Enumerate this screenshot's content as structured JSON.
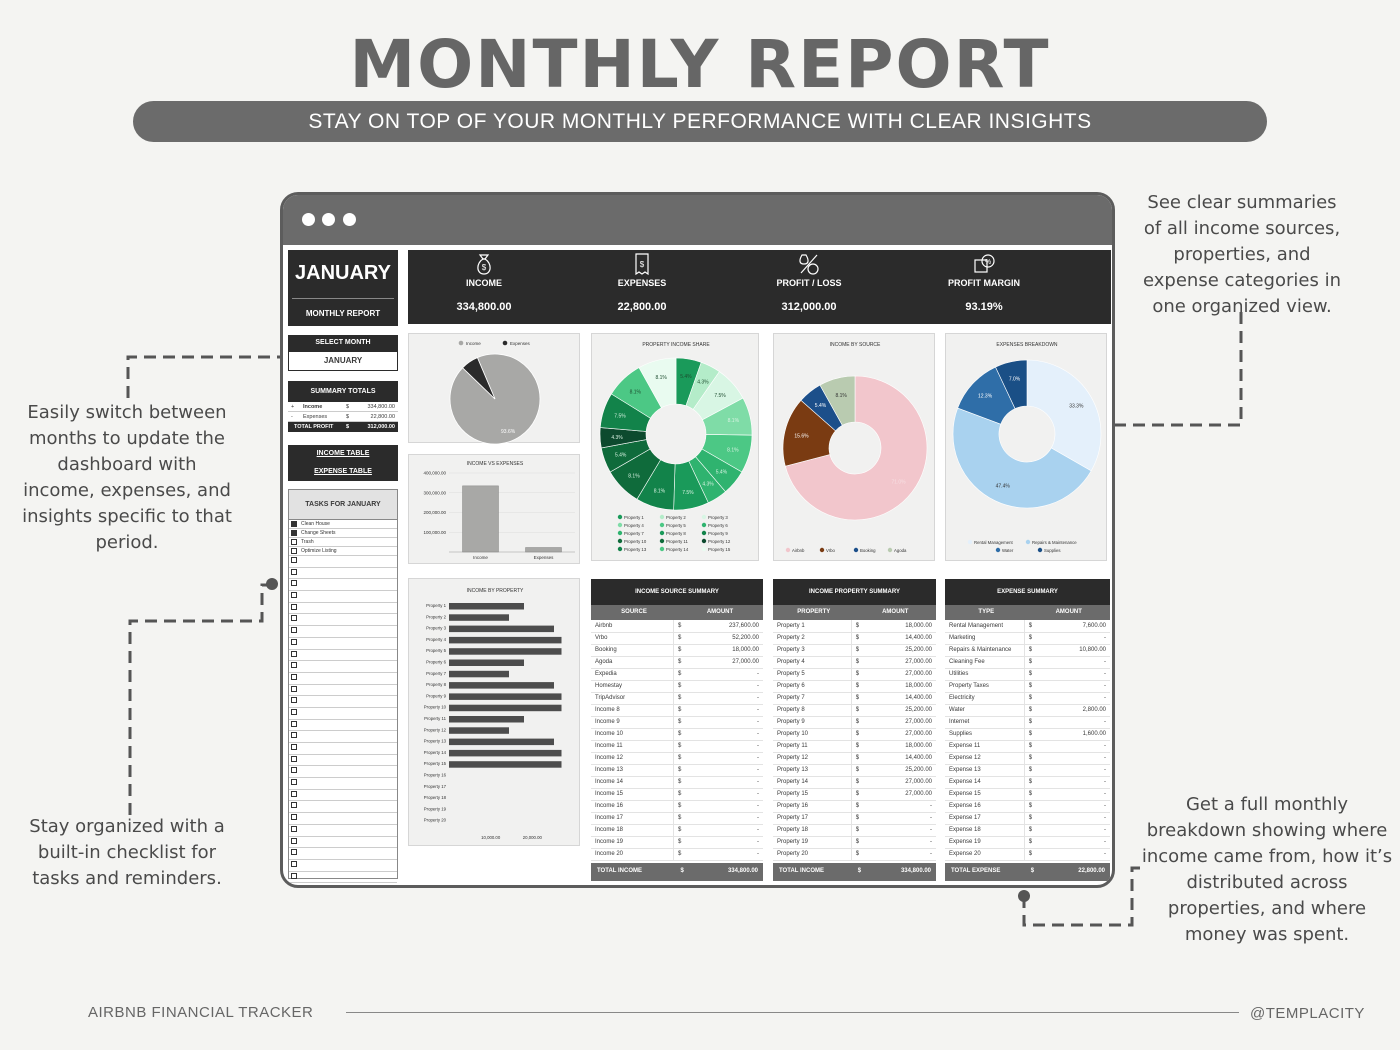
{
  "header": {
    "title": "MONTHLY REPORT",
    "subtitle": "STAY ON TOP OF YOUR MONTHLY PERFORMANCE WITH CLEAR INSIGHTS"
  },
  "notes": {
    "left_top": "Easily switch between months to update the dashboard with income, expenses, and insights specific to that period.",
    "left_bottom": "Stay organized with a built-in checklist for tasks and reminders.",
    "right_top": "See clear summaries of all income sources, properties, and expense categories in one organized view.",
    "right_bottom": "Get a full monthly breakdown showing where income came from, how it’s distributed across properties, and where money was spent."
  },
  "footer": {
    "left": "AIRBNB FINANCIAL TRACKER",
    "right": "@TEMPLACITY"
  },
  "dashboard": {
    "month_title": "JANUARY",
    "report_label": "MONTHLY REPORT",
    "select_month_label": "SELECT MONTH",
    "selected_month": "JANUARY",
    "summary_totals": {
      "title": "SUMMARY TOTALS",
      "rows": [
        {
          "sign": "+",
          "label": "Income",
          "cur": "$",
          "value": "334,800.00"
        },
        {
          "sign": "-",
          "label": "Expenses",
          "cur": "$",
          "value": "22,800.00"
        }
      ],
      "total_label": "TOTAL PROFIT",
      "total_cur": "$",
      "total_value": "312,000.00"
    },
    "links": {
      "income_table": "INCOME TABLE",
      "expense_table": "EXPENSE TABLE"
    },
    "tasks": {
      "title": "TASKS FOR JANUARY",
      "items": [
        {
          "label": "Clean House",
          "checked": true
        },
        {
          "label": "Change Sheets",
          "checked": true
        },
        {
          "label": "Trash",
          "checked": false
        },
        {
          "label": "Optimize Listing",
          "checked": false
        }
      ],
      "empty_rows": 28
    },
    "kpis": [
      {
        "label": "INCOME",
        "value": "334,800.00",
        "icon": "money-bag-icon"
      },
      {
        "label": "EXPENSES",
        "value": "22,800.00",
        "icon": "receipt-icon"
      },
      {
        "label": "PROFIT / LOSS",
        "value": "312,000.00",
        "icon": "profit-loss-icon"
      },
      {
        "label": "PROFIT MARGIN",
        "value": "93.19%",
        "icon": "margin-icon"
      }
    ]
  },
  "colors": {
    "dark": "#2b2b2b",
    "grey_pie": "#a8a8a6",
    "bar": "#4d4d4d",
    "greens": [
      "#0d4a2e",
      "#0f6b3b",
      "#12834a",
      "#1a9a5a",
      "#2fb36f",
      "#4cc885",
      "#7fdca7",
      "#b4ecc9",
      "#d8f6e4",
      "#e9fbf0"
    ],
    "source_colors": {
      "Airbnb": "#f2c6cc",
      "Vrbo": "#7a3b12",
      "Booking": "#1c4f8a",
      "Agoda": "#b9cbb0"
    },
    "expense_colors": {
      "Rental Management": "#e4f0fb",
      "Repairs & Maintenance": "#a9d2ef",
      "Water": "#2f6ea8",
      "Supplies": "#1a4f86"
    }
  },
  "chart_data": [
    {
      "type": "pie",
      "title": "",
      "legend": [
        "Income",
        "Expenses"
      ],
      "labels": [
        "Income",
        "Expenses"
      ],
      "values": [
        93.6,
        6.4
      ],
      "data_labels": [
        "93.6%"
      ]
    },
    {
      "type": "bar",
      "title": "INCOME VS EXPENSES",
      "categories": [
        "Income",
        "Expenses"
      ],
      "values": [
        334800,
        22800
      ],
      "ylim": [
        0,
        400000
      ],
      "yticks": [
        "400,000.00",
        "300,000.00",
        "200,000.00",
        "100,000.00"
      ],
      "grid": true
    },
    {
      "type": "bar",
      "orientation": "horizontal",
      "title": "INCOME BY PROPERTY",
      "categories": [
        "Property 1",
        "Property 2",
        "Property 3",
        "Property 4",
        "Property 5",
        "Property 6",
        "Property 7",
        "Property 8",
        "Property 9",
        "Property 10",
        "Property 11",
        "Property 12",
        "Property 13",
        "Property 14",
        "Property 15",
        "Property 16",
        "Property 17",
        "Property 18",
        "Property 19",
        "Property 20"
      ],
      "values": [
        18000,
        14400,
        25200,
        27000,
        27000,
        18000,
        14400,
        25200,
        27000,
        27000,
        18000,
        14400,
        25200,
        27000,
        27000,
        0,
        0,
        0,
        0,
        0
      ],
      "xticks": [
        "10,000.00",
        "20,000.00"
      ],
      "xlim": [
        0,
        30000
      ]
    },
    {
      "type": "pie",
      "title": "PROPERTY INCOME SHARE",
      "labels": [
        "Property 1",
        "Property 2",
        "Property 3",
        "Property 4",
        "Property 5",
        "Property 6",
        "Property 7",
        "Property 8",
        "Property 9",
        "Property 10",
        "Property 11",
        "Property 12",
        "Property 13",
        "Property 14",
        "Property 15"
      ],
      "values": [
        5.4,
        4.3,
        7.5,
        8.1,
        8.1,
        5.4,
        4.3,
        7.5,
        8.1,
        8.1,
        5.4,
        4.3,
        7.5,
        8.1,
        8.1
      ],
      "data_labels": [
        "5.4%",
        "4.3%",
        "7.5%",
        "8.1%",
        "8.1%",
        "5.4%",
        "4.3%",
        "7.5%",
        "8.1%",
        "8.1%",
        "5.4%",
        "4.3%",
        "7.5%",
        "8.1%",
        "8.1%"
      ],
      "legend": [
        "Property 1",
        "Property 2",
        "Property 3",
        "Property 4",
        "Property 5",
        "Property 6",
        "Property 7",
        "Property 8",
        "Property 9",
        "Property 10",
        "Property 11",
        "Property 12",
        "Property 13",
        "Property 14",
        "Property 15"
      ]
    },
    {
      "type": "pie",
      "title": "INCOME BY SOURCE",
      "labels": [
        "Airbnb",
        "Vrbo",
        "Booking",
        "Agoda"
      ],
      "values": [
        71.0,
        15.6,
        5.4,
        8.1
      ],
      "data_labels": [
        "71.0%",
        "15.6%",
        "5.4%",
        "8.1%"
      ],
      "legend": [
        "Airbnb",
        "Vrbo",
        "Booking",
        "Agoda"
      ]
    },
    {
      "type": "pie",
      "title": "EXPENSES BREAKDOWN",
      "labels": [
        "Rental Management",
        "Repairs & Maintenance",
        "Water",
        "Supplies"
      ],
      "values": [
        33.3,
        47.4,
        12.3,
        7.0
      ],
      "data_labels": [
        "33.3%",
        "47.4%",
        "12.3%",
        "7.0%"
      ],
      "legend": [
        "Rental Management",
        "Repairs & Maintenance",
        "Water",
        "Supplies"
      ]
    },
    {
      "type": "table",
      "title": "INCOME SOURCE SUMMARY",
      "columns": [
        "SOURCE",
        "AMOUNT"
      ],
      "rows": [
        [
          "Airbnb",
          "$",
          "237,600.00"
        ],
        [
          "Vrbo",
          "$",
          "52,200.00"
        ],
        [
          "Booking",
          "$",
          "18,000.00"
        ],
        [
          "Agoda",
          "$",
          "27,000.00"
        ],
        [
          "Expedia",
          "$",
          "-"
        ],
        [
          "Homestay",
          "$",
          "-"
        ],
        [
          "TripAdvisor",
          "$",
          "-"
        ],
        [
          "Income 8",
          "$",
          "-"
        ],
        [
          "Income 9",
          "$",
          "-"
        ],
        [
          "Income 10",
          "$",
          "-"
        ],
        [
          "Income 11",
          "$",
          "-"
        ],
        [
          "Income 12",
          "$",
          "-"
        ],
        [
          "Income 13",
          "$",
          "-"
        ],
        [
          "Income 14",
          "$",
          "-"
        ],
        [
          "Income 15",
          "$",
          "-"
        ],
        [
          "Income 16",
          "$",
          "-"
        ],
        [
          "Income 17",
          "$",
          "-"
        ],
        [
          "Income 18",
          "$",
          "-"
        ],
        [
          "Income 19",
          "$",
          "-"
        ],
        [
          "Income 20",
          "$",
          "-"
        ]
      ],
      "total": [
        "TOTAL INCOME",
        "$",
        "334,800.00"
      ]
    },
    {
      "type": "table",
      "title": "INCOME PROPERTY SUMMARY",
      "columns": [
        "PROPERTY",
        "AMOUNT"
      ],
      "rows": [
        [
          "Property 1",
          "$",
          "18,000.00"
        ],
        [
          "Property 2",
          "$",
          "14,400.00"
        ],
        [
          "Property 3",
          "$",
          "25,200.00"
        ],
        [
          "Property 4",
          "$",
          "27,000.00"
        ],
        [
          "Property 5",
          "$",
          "27,000.00"
        ],
        [
          "Property 6",
          "$",
          "18,000.00"
        ],
        [
          "Property 7",
          "$",
          "14,400.00"
        ],
        [
          "Property 8",
          "$",
          "25,200.00"
        ],
        [
          "Property 9",
          "$",
          "27,000.00"
        ],
        [
          "Property 10",
          "$",
          "27,000.00"
        ],
        [
          "Property 11",
          "$",
          "18,000.00"
        ],
        [
          "Property 12",
          "$",
          "14,400.00"
        ],
        [
          "Property 13",
          "$",
          "25,200.00"
        ],
        [
          "Property 14",
          "$",
          "27,000.00"
        ],
        [
          "Property 15",
          "$",
          "27,000.00"
        ],
        [
          "Property 16",
          "$",
          "-"
        ],
        [
          "Property 17",
          "$",
          "-"
        ],
        [
          "Property 18",
          "$",
          "-"
        ],
        [
          "Property 19",
          "$",
          "-"
        ],
        [
          "Property 20",
          "$",
          "-"
        ]
      ],
      "total": [
        "TOTAL INCOME",
        "$",
        "334,800.00"
      ]
    },
    {
      "type": "table",
      "title": "EXPENSE SUMMARY",
      "columns": [
        "TYPE",
        "AMOUNT"
      ],
      "rows": [
        [
          "Rental Management",
          "$",
          "7,600.00"
        ],
        [
          "Marketing",
          "$",
          "-"
        ],
        [
          "Repairs & Maintenance",
          "$",
          "10,800.00"
        ],
        [
          "Cleaning Fee",
          "$",
          "-"
        ],
        [
          "Utilities",
          "$",
          "-"
        ],
        [
          "Property Taxes",
          "$",
          "-"
        ],
        [
          "Electricity",
          "$",
          "-"
        ],
        [
          "Water",
          "$",
          "2,800.00"
        ],
        [
          "Internet",
          "$",
          "-"
        ],
        [
          "Supplies",
          "$",
          "1,600.00"
        ],
        [
          "Expense 11",
          "$",
          "-"
        ],
        [
          "Expense 12",
          "$",
          "-"
        ],
        [
          "Expense 13",
          "$",
          "-"
        ],
        [
          "Expense 14",
          "$",
          "-"
        ],
        [
          "Expense 15",
          "$",
          "-"
        ],
        [
          "Expense 16",
          "$",
          "-"
        ],
        [
          "Expense 17",
          "$",
          "-"
        ],
        [
          "Expense 18",
          "$",
          "-"
        ],
        [
          "Expense 19",
          "$",
          "-"
        ],
        [
          "Expense 20",
          "$",
          "-"
        ]
      ],
      "total": [
        "TOTAL EXPENSE",
        "$",
        "22,800.00"
      ]
    }
  ]
}
